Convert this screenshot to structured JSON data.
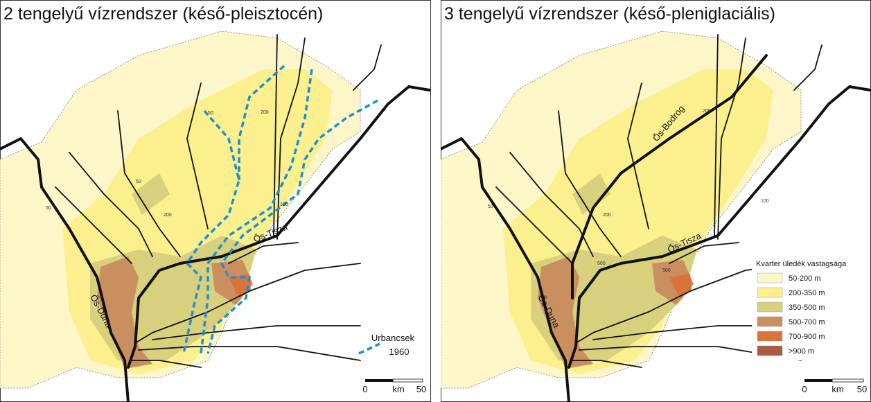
{
  "panels": [
    {
      "title": "2 tengelyű vízrendszer (késő-pleisztocén)",
      "river_labels": [
        "Ős-Tisza",
        "Ős-Duna"
      ],
      "contour_labels": [
        50,
        200,
        50,
        50,
        200,
        100
      ],
      "line_legend": {
        "name": "Urbancsek",
        "year": 1960
      },
      "scale": {
        "start": 0,
        "unit": "km",
        "end": 50
      }
    },
    {
      "title": "3 tengelyű vízrendszer (késő-pleniglaciális)",
      "river_labels": [
        "Ős-Bodrog",
        "Ős-Tisza",
        "Ős-Duna"
      ],
      "contour_labels": [
        500,
        500,
        200,
        200,
        100,
        50
      ],
      "legend": {
        "title": "Kvarter üledék vastagsága",
        "items": [
          {
            "label": "50-200 m",
            "color": "#fdf6c9"
          },
          {
            "label": "200-350 m",
            "color": "#fbef8e"
          },
          {
            "label": "350-500 m",
            "color": "#d9d07e"
          },
          {
            "label": "500-700 m",
            "color": "#c98f5f"
          },
          {
            "label": "700-900 m",
            "color": "#d8743a"
          },
          {
            "label": ">900 m",
            "color": "#a85a45"
          }
        ]
      },
      "scale": {
        "start": 0,
        "unit": "km",
        "end": 50
      }
    }
  ]
}
